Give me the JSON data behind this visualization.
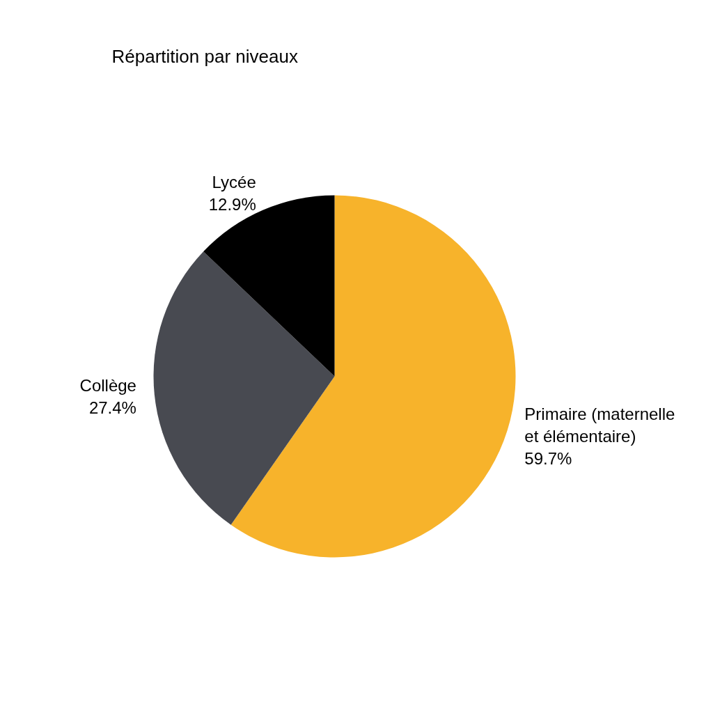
{
  "chart_data": {
    "type": "pie",
    "title": "Répartition par niveaux",
    "categories": [
      "Primaire (maternelle\net élémentaire)",
      "Collège",
      "Lycée"
    ],
    "values": [
      59.7,
      27.4,
      12.9
    ],
    "colors": [
      "#f7b32b",
      "#484a51",
      "#000000"
    ],
    "value_labels": [
      "59.7%",
      "27.4%",
      "12.9%"
    ]
  }
}
